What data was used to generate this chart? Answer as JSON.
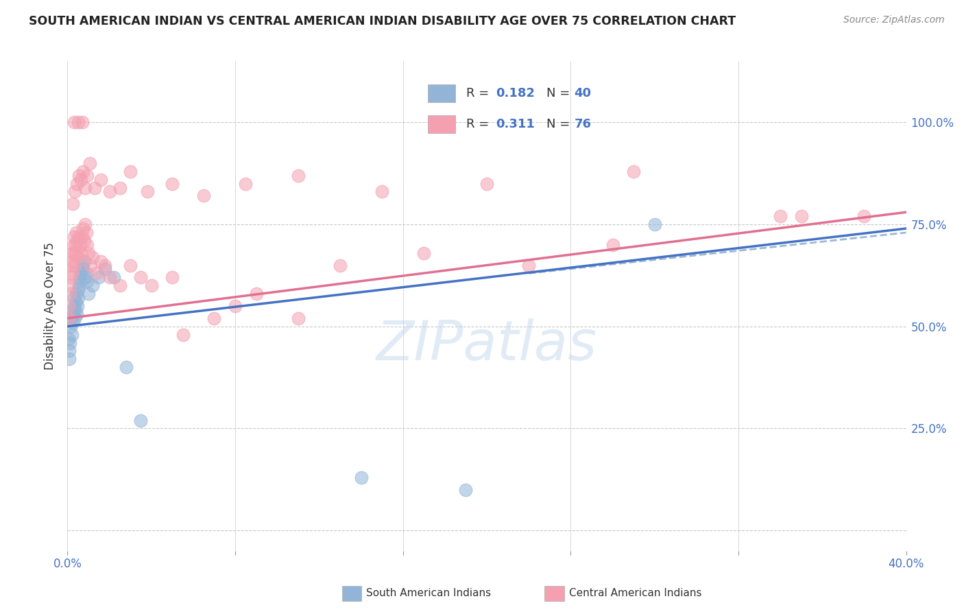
{
  "title": "SOUTH AMERICAN INDIAN VS CENTRAL AMERICAN INDIAN DISABILITY AGE OVER 75 CORRELATION CHART",
  "source": "Source: ZipAtlas.com",
  "ylabel": "Disability Age Over 75",
  "xlim": [
    0.0,
    40.0
  ],
  "ylim": [
    -5.0,
    115.0
  ],
  "plot_ylim_bottom": 0.0,
  "plot_ylim_top": 107.0,
  "watermark_text": "ZIPatlas",
  "blue_color": "#92B4D7",
  "pink_color": "#F4A0B0",
  "blue_line_color": "#4472C4",
  "pink_line_color": "#E07090",
  "blue_dash_color": "#9CB8D8",
  "grid_color": "#C8C8C8",
  "background_color": "#FFFFFF",
  "south_american_x": [
    0.05,
    0.08,
    0.1,
    0.12,
    0.15,
    0.18,
    0.2,
    0.22,
    0.25,
    0.28,
    0.3,
    0.32,
    0.35,
    0.38,
    0.4,
    0.42,
    0.45,
    0.48,
    0.5,
    0.52,
    0.55,
    0.58,
    0.6,
    0.65,
    0.7,
    0.75,
    0.8,
    0.85,
    0.9,
    0.95,
    1.0,
    1.2,
    1.5,
    1.8,
    2.2,
    2.8,
    3.5,
    14.0,
    19.0,
    28.0
  ],
  "south_american_y": [
    47,
    44,
    42,
    46,
    50,
    52,
    54,
    48,
    51,
    53,
    55,
    57,
    52,
    54,
    56,
    58,
    53,
    55,
    57,
    59,
    60,
    62,
    61,
    63,
    65,
    64,
    66,
    62,
    63,
    61,
    58,
    60,
    62,
    64,
    62,
    40,
    27,
    13,
    10,
    75
  ],
  "central_american_x": [
    0.05,
    0.08,
    0.1,
    0.12,
    0.15,
    0.18,
    0.2,
    0.22,
    0.25,
    0.28,
    0.3,
    0.32,
    0.35,
    0.38,
    0.4,
    0.42,
    0.45,
    0.5,
    0.55,
    0.6,
    0.65,
    0.7,
    0.75,
    0.8,
    0.85,
    0.9,
    0.95,
    1.0,
    1.1,
    1.2,
    1.4,
    1.6,
    1.8,
    2.0,
    2.5,
    3.0,
    3.5,
    4.0,
    5.0,
    5.5,
    7.0,
    8.0,
    9.0,
    11.0,
    13.0,
    17.0,
    22.0,
    26.0,
    34.0,
    0.25,
    0.35,
    0.45,
    0.55,
    0.65,
    0.75,
    0.85,
    0.95,
    1.05,
    1.3,
    1.6,
    2.0,
    2.5,
    3.0,
    3.8,
    5.0,
    6.5,
    8.5,
    11.0,
    15.0,
    20.0,
    27.0,
    35.0,
    0.3,
    0.5,
    0.7,
    38.0
  ],
  "central_american_y": [
    55,
    52,
    60,
    58,
    62,
    65,
    68,
    63,
    66,
    70,
    72,
    68,
    65,
    70,
    73,
    68,
    71,
    67,
    72,
    70,
    68,
    72,
    74,
    71,
    75,
    73,
    70,
    68,
    65,
    67,
    63,
    66,
    65,
    62,
    60,
    65,
    62,
    60,
    62,
    48,
    52,
    55,
    58,
    52,
    65,
    68,
    65,
    70,
    77,
    80,
    83,
    85,
    87,
    86,
    88,
    84,
    87,
    90,
    84,
    86,
    83,
    84,
    88,
    83,
    85,
    82,
    85,
    87,
    83,
    85,
    88,
    77,
    100,
    100,
    100,
    77
  ],
  "blue_trend_x0": 0.0,
  "blue_trend_y0": 50.0,
  "blue_trend_x1": 40.0,
  "blue_trend_y1": 74.0,
  "pink_trend_x0": 0.0,
  "pink_trend_y0": 52.0,
  "pink_trend_x1": 40.0,
  "pink_trend_y1": 78.0,
  "blue_dash_x0": 22.0,
  "blue_dash_y0": 63.0,
  "blue_dash_x1": 40.0,
  "blue_dash_y1": 73.0,
  "ytick_positions": [
    0,
    25,
    50,
    75,
    100
  ],
  "ytick_labels_right": [
    "",
    "25.0%",
    "50.0%",
    "75.0%",
    "100.0%"
  ],
  "xtick_positions": [
    0,
    8,
    16,
    24,
    32,
    40
  ],
  "xtick_labels": [
    "0.0%",
    "",
    "",
    "",
    "",
    "40.0%"
  ]
}
